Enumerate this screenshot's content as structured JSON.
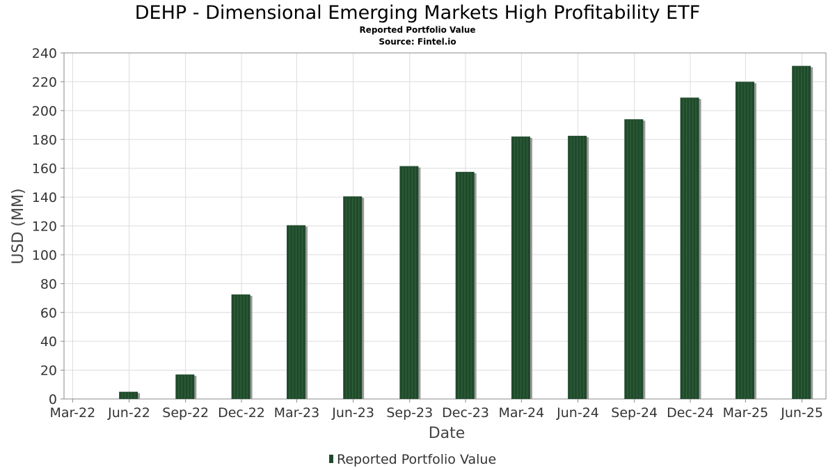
{
  "chart_data": {
    "type": "bar",
    "title": "DEHP - Dimensional Emerging Markets High Profitability ETF",
    "subtitle": "Reported Portfolio Value",
    "source": "Source: Fintel.io",
    "xlabel": "Date",
    "ylabel": "USD (MM)",
    "ylim": [
      0,
      240
    ],
    "yticks": [
      0,
      20,
      40,
      60,
      80,
      100,
      120,
      140,
      160,
      180,
      200,
      220,
      240
    ],
    "xticks": [
      "Mar-22",
      "Jun-22",
      "Sep-22",
      "Dec-22",
      "Mar-23",
      "Jun-23",
      "Sep-23",
      "Dec-23",
      "Mar-24",
      "Jun-24",
      "Sep-24",
      "Dec-24",
      "Mar-25",
      "Jun-25"
    ],
    "grid": true,
    "legend_position": "bottom-center",
    "series": [
      {
        "name": "Reported Portfolio Value",
        "color": "#1f4a2b",
        "points": [
          {
            "date": "2022-05-31",
            "value": 5
          },
          {
            "date": "2022-08-31",
            "value": 17
          },
          {
            "date": "2022-11-30",
            "value": 72.5
          },
          {
            "date": "2023-02-28",
            "value": 120.5
          },
          {
            "date": "2023-05-31",
            "value": 140.5
          },
          {
            "date": "2023-08-31",
            "value": 161.5
          },
          {
            "date": "2023-11-30",
            "value": 157.5
          },
          {
            "date": "2024-02-29",
            "value": 182
          },
          {
            "date": "2024-05-31",
            "value": 182.5
          },
          {
            "date": "2024-08-31",
            "value": 194
          },
          {
            "date": "2024-11-30",
            "value": 209
          },
          {
            "date": "2025-02-28",
            "value": 220
          },
          {
            "date": "2025-05-31",
            "value": 231
          }
        ]
      }
    ]
  }
}
